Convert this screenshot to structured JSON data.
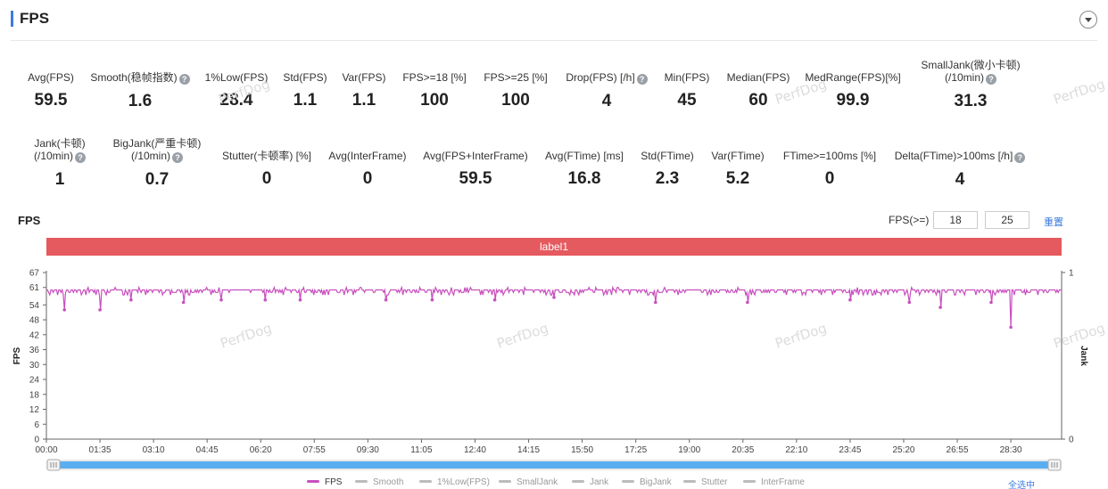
{
  "header": {
    "title": "FPS"
  },
  "metrics_row1": [
    {
      "label": "Avg(FPS)",
      "value": "59.5",
      "help": false
    },
    {
      "label": "Smooth(稳帧指数)",
      "value": "1.6",
      "help": true
    },
    {
      "label": "1%Low(FPS)",
      "value": "28.4",
      "help": false
    },
    {
      "label": "Std(FPS)",
      "value": "1.1",
      "help": false
    },
    {
      "label": "Var(FPS)",
      "value": "1.1",
      "help": false
    },
    {
      "label": "FPS>=18 [%]",
      "value": "100",
      "help": false
    },
    {
      "label": "FPS>=25 [%]",
      "value": "100",
      "help": false
    },
    {
      "label": "Drop(FPS) [/h]",
      "value": "4",
      "help": true
    },
    {
      "label": "Min(FPS)",
      "value": "45",
      "help": false
    },
    {
      "label": "Median(FPS)",
      "value": "60",
      "help": false
    },
    {
      "label": "MedRange(FPS)[%]",
      "value": "99.9",
      "help": false
    },
    {
      "label": "SmallJank(微小卡顿)",
      "label2": "(/10min)",
      "value": "31.3",
      "help": true
    }
  ],
  "metrics_row2": [
    {
      "label": "Jank(卡顿)",
      "label2": "(/10min)",
      "value": "1",
      "help": true
    },
    {
      "label": "BigJank(严重卡顿)",
      "label2": "(/10min)",
      "value": "0.7",
      "help": true
    },
    {
      "label": "Stutter(卡顿率) [%]",
      "value": "0",
      "help": false
    },
    {
      "label": "Avg(InterFrame)",
      "value": "0",
      "help": false
    },
    {
      "label": "Avg(FPS+InterFrame)",
      "value": "59.5",
      "help": false
    },
    {
      "label": "Avg(FTime) [ms]",
      "value": "16.8",
      "help": false
    },
    {
      "label": "Std(FTime)",
      "value": "2.3",
      "help": false
    },
    {
      "label": "Var(FTime)",
      "value": "5.2",
      "help": false
    },
    {
      "label": "FTime>=100ms [%]",
      "value": "0",
      "help": false
    },
    {
      "label": "Delta(FTime)>100ms [/h]",
      "value": "4",
      "help": true
    }
  ],
  "help_glyph": "?",
  "chart_header": {
    "title": "FPS",
    "threshold_label": "FPS(>=)",
    "threshold_1": "18",
    "threshold_2": "25",
    "reset_label": "重置"
  },
  "label_band": "label1",
  "watermark_text": "PerfDog",
  "legend": {
    "items": [
      "FPS",
      "Smooth",
      "1%Low(FPS)",
      "SmallJank",
      "Jank",
      "BigJank",
      "Stutter",
      "InterFrame"
    ],
    "select_all": "全选中"
  },
  "colors": {
    "fps_series": "#c84fbe",
    "label_band": "#e55a5f",
    "zoom_bar": "#5aaef0",
    "accent": "#3b7be0"
  },
  "chart_data": {
    "type": "line",
    "title": "",
    "ylabel": "FPS",
    "y2label": "Jank",
    "ylim": [
      0,
      67
    ],
    "y_ticks": [
      0,
      6,
      12,
      18,
      24,
      30,
      36,
      42,
      48,
      54,
      61,
      67
    ],
    "y2_ticks": [
      0,
      1
    ],
    "x_ticks": [
      "00:00",
      "01:35",
      "03:10",
      "04:45",
      "06:20",
      "07:55",
      "09:30",
      "11:05",
      "12:40",
      "14:15",
      "15:50",
      "17:25",
      "19:00",
      "20:35",
      "22:10",
      "23:45",
      "25:20",
      "26:55",
      "28:30"
    ],
    "duration_s": 1800,
    "series": [
      {
        "name": "FPS",
        "baseline": 60,
        "dips": [
          {
            "t": 32,
            "v": 52
          },
          {
            "t": 95,
            "v": 52
          },
          {
            "t": 150,
            "v": 56
          },
          {
            "t": 243,
            "v": 55
          },
          {
            "t": 310,
            "v": 56
          },
          {
            "t": 388,
            "v": 56
          },
          {
            "t": 450,
            "v": 56
          },
          {
            "t": 602,
            "v": 56
          },
          {
            "t": 684,
            "v": 56
          },
          {
            "t": 795,
            "v": 56
          },
          {
            "t": 900,
            "v": 57
          },
          {
            "t": 1080,
            "v": 55
          },
          {
            "t": 1243,
            "v": 55
          },
          {
            "t": 1425,
            "v": 56
          },
          {
            "t": 1530,
            "v": 55
          },
          {
            "t": 1585,
            "v": 53
          },
          {
            "t": 1675,
            "v": 55
          },
          {
            "t": 1710,
            "v": 45
          }
        ]
      }
    ],
    "legend_position": "bottom",
    "grid": false
  }
}
